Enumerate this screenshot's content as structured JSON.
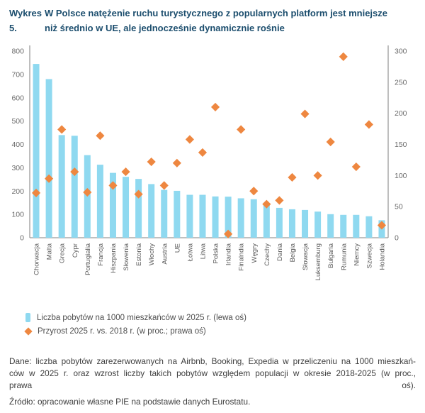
{
  "header": {
    "label": "Wykres 5.",
    "title_line1": "W Polsce natężenie ruchu turystycznego z popularnych platform jest mniejsze",
    "title_line2": "niż średnio w UE, ale jednocześnie dynamicznie rośnie"
  },
  "chart_data": {
    "type": "bar",
    "title": "W Polsce natężenie ruchu turystycznego z popularnych platform jest mniejsze niż średnio w UE, ale jednocześnie dynamicznie rośnie",
    "categories": [
      "Chorwacja",
      "Malta",
      "Grecja",
      "Cypr",
      "Portugialia",
      "Francja",
      "Hiszpania",
      "Słowenia",
      "Estonia",
      "Włochy",
      "Austria",
      "UE",
      "Łotwa",
      "Litwa",
      "Polska",
      "Irlandia",
      "Finalndia",
      "Węgry",
      "Czechy",
      "Dania",
      "Belgia",
      "Słowacja",
      "Luksemburg",
      "Bułgaria",
      "Rumunia",
      "Niemcy",
      "Szwecja",
      "Holandia"
    ],
    "series": [
      {
        "name": "Liczba pobytów na 1000 mieszkańców w 2025 r. (lewa oś)",
        "mark": "bar",
        "axis": "left",
        "values": [
          745,
          680,
          440,
          437,
          354,
          313,
          278,
          261,
          252,
          230,
          205,
          201,
          184,
          184,
          177,
          176,
          169,
          165,
          142,
          128,
          122,
          119,
          112,
          101,
          98,
          98,
          92,
          75
        ]
      },
      {
        "name": "Przyrost 2025 r. vs. 2018 r. (w proc.; prawa oś)",
        "mark": "scatter-diamond",
        "axis": "right",
        "values": [
          72,
          95,
          174,
          106,
          73,
          164,
          84,
          106,
          70,
          122,
          84,
          120,
          158,
          137,
          210,
          6,
          174,
          75,
          54,
          60,
          97,
          199,
          100,
          154,
          291,
          114,
          182,
          20
        ]
      }
    ],
    "left_axis": {
      "min": 0,
      "max": 800,
      "step": 100
    },
    "right_axis": {
      "min": 0,
      "max": 300,
      "step": 50
    },
    "grid": false,
    "legend_position": "bottom",
    "colors": {
      "bar": "#8fd9f0",
      "diamond": "#ee8740",
      "axis_line": "#9b9b9b",
      "tick_text": "#6a6a6a",
      "label_text": "#595959",
      "title_text": "#1b4d6d"
    }
  },
  "legend": {
    "items": [
      {
        "label": "Liczba pobytów na 1000 mieszkańców w 2025 r. (lewa oś)"
      },
      {
        "label": "Przyrost 2025 r. vs. 2018 r. (w proc.; prawa oś)"
      }
    ]
  },
  "footnote": {
    "lines": [
      "Dane: liczba pobytów zarezerwowanych na Airbnb, Booking, Expedia w przeliczeniu na 1000 mieszkań-",
      "ców w 2025 r. oraz wzrost liczby takich pobytów względem populacji w okresie 2018-2025 (w proc.,",
      "prawa oś)."
    ],
    "source": "Źródło: opracowanie własne PIE na podstawie danych Eurostatu."
  }
}
